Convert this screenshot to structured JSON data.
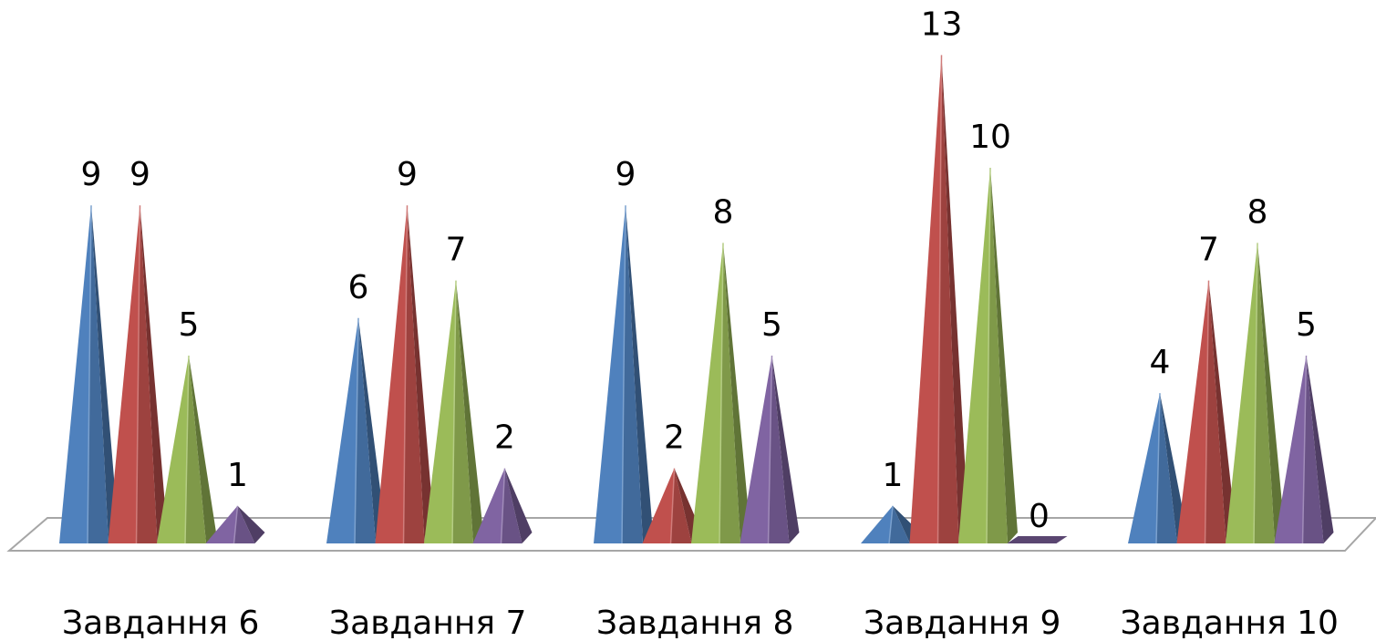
{
  "chart_data": {
    "type": "bar",
    "style": "3d-pyramid",
    "categories": [
      "Завдання 6",
      "Завдання 7",
      "Завдання 8",
      "Завдання 9",
      "Завдання 10"
    ],
    "series": [
      {
        "values": [
          9,
          6,
          9,
          1,
          4
        ],
        "color": "#4f81bd"
      },
      {
        "values": [
          9,
          9,
          2,
          13,
          7
        ],
        "color": "#c0504d"
      },
      {
        "values": [
          5,
          7,
          8,
          10,
          8
        ],
        "color": "#9bbb59"
      },
      {
        "values": [
          1,
          2,
          5,
          0,
          5
        ],
        "color": "#8064a2"
      }
    ],
    "ylim": [
      0,
      13
    ],
    "grid": false,
    "legend": "none",
    "data_labels": true
  }
}
